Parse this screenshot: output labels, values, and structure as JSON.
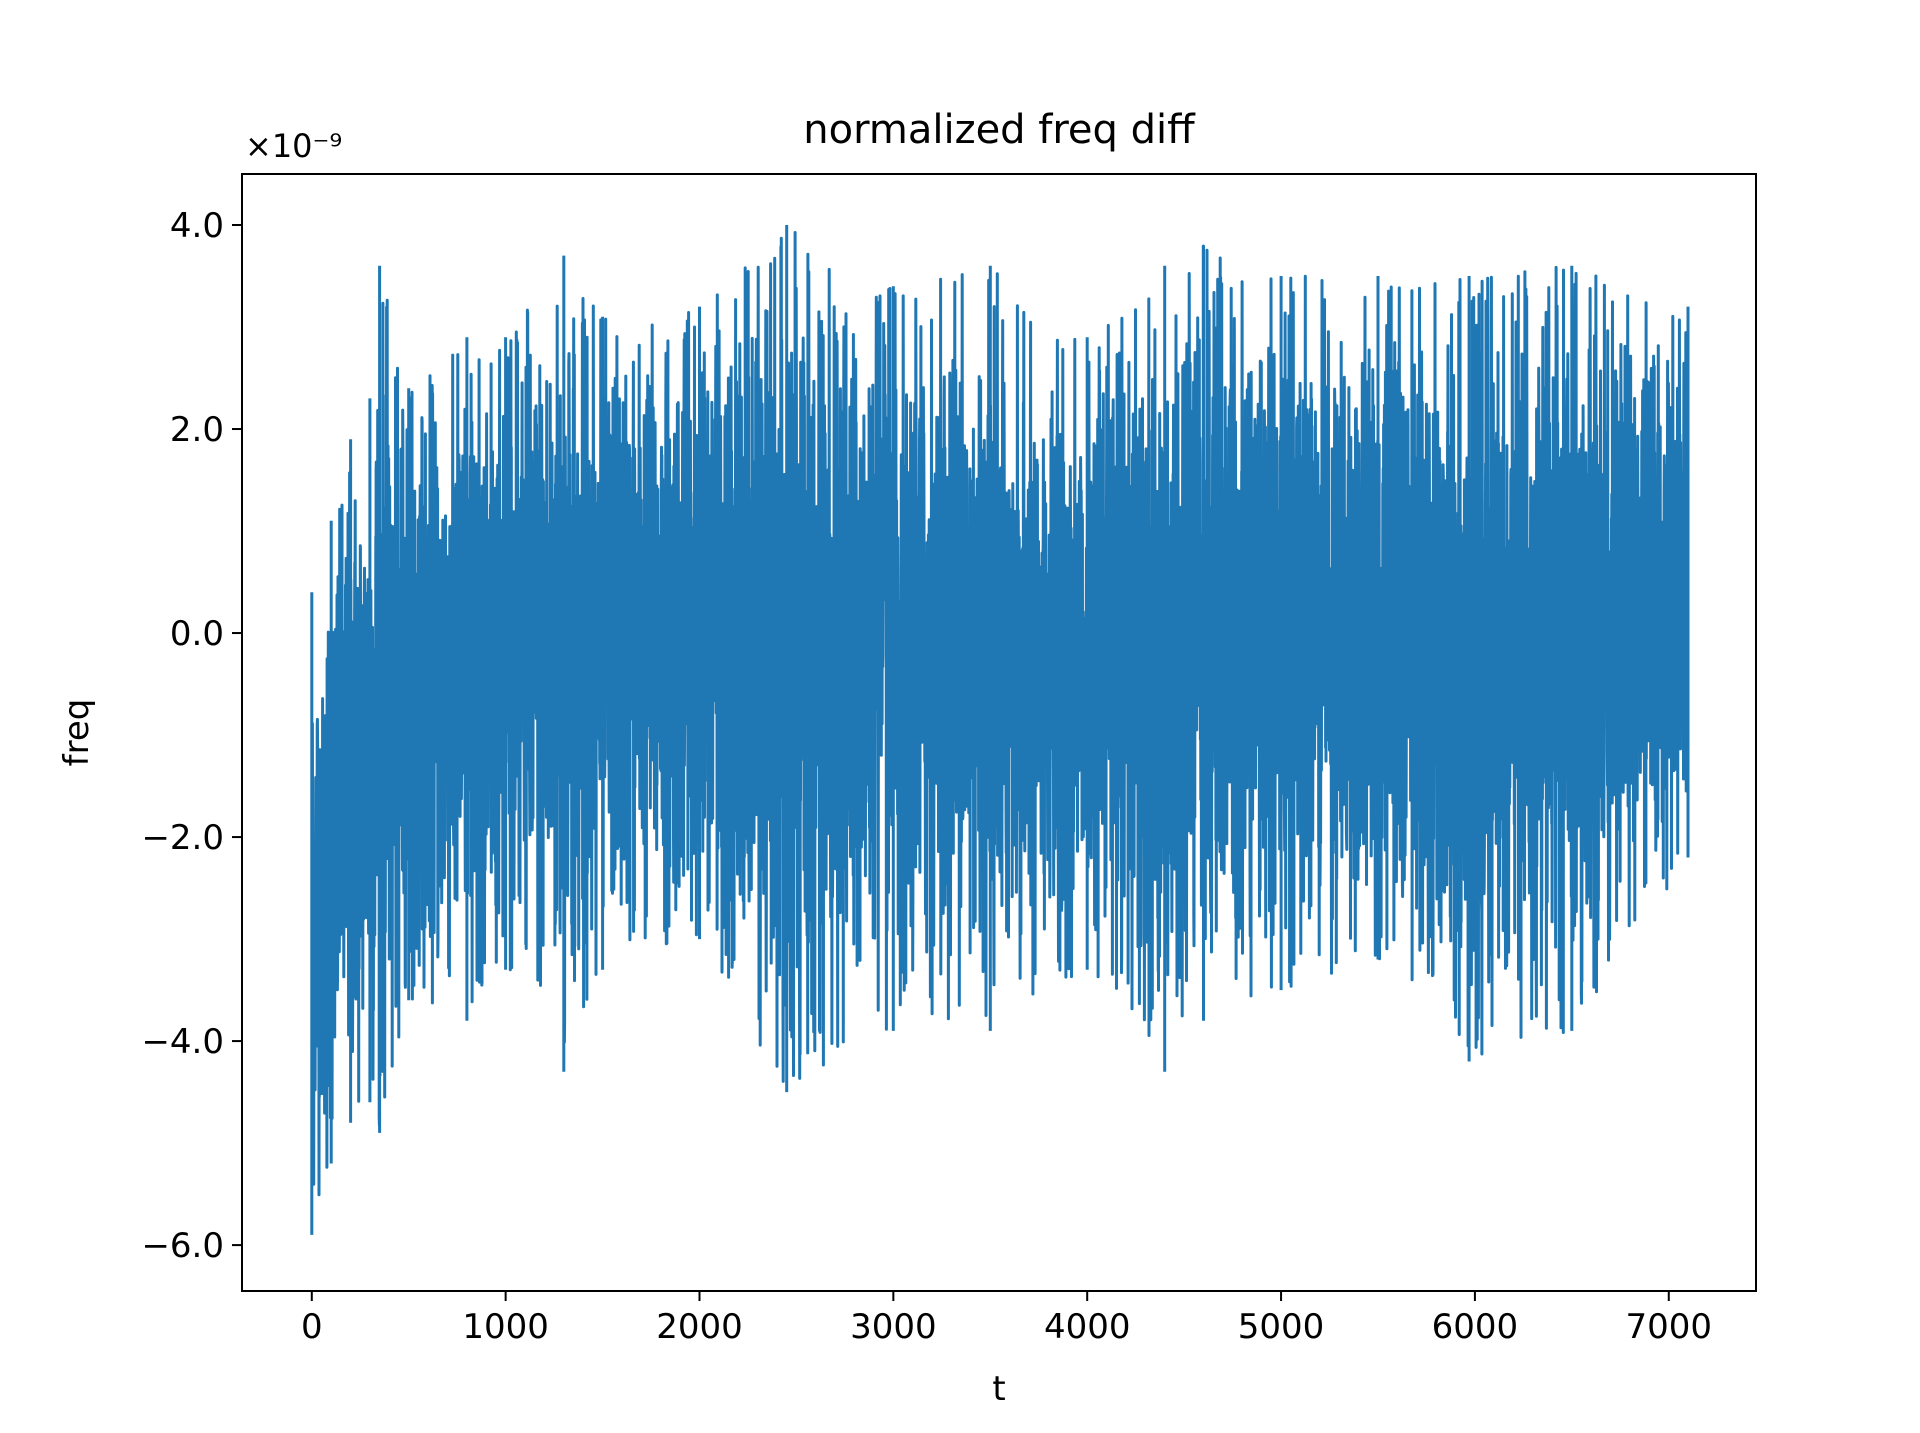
{
  "chart_data": {
    "type": "line",
    "title": "normalized freq diff",
    "xlabel": "t",
    "ylabel": "freq",
    "y_scale_label": "×10⁻⁹",
    "xlim": [
      -360,
      7450
    ],
    "ylim": [
      -6.45,
      4.5
    ],
    "x_ticks": [
      0,
      1000,
      2000,
      3000,
      4000,
      5000,
      6000,
      7000
    ],
    "x_tick_labels": [
      "0",
      "1000",
      "2000",
      "3000",
      "4000",
      "5000",
      "6000",
      "7000"
    ],
    "y_ticks": [
      -6.0,
      -4.0,
      -2.0,
      0.0,
      2.0,
      4.0
    ],
    "y_tick_labels": [
      "−6.0",
      "−4.0",
      "−2.0",
      "0.0",
      "2.0",
      "4.0"
    ],
    "grid": false,
    "line_color": "#1f77b4",
    "series": [
      {
        "n_points": 7100,
        "x_start": 0,
        "x_end": 7099,
        "mean": -0.45,
        "envelope": [
          {
            "x": 0,
            "low": -5.9,
            "high": 0.4
          },
          {
            "x": 100,
            "low": -5.2,
            "high": 1.1
          },
          {
            "x": 200,
            "low": -4.8,
            "high": 1.9
          },
          {
            "x": 300,
            "low": -4.6,
            "high": 2.3
          },
          {
            "x": 350,
            "low": -4.9,
            "high": 3.6
          },
          {
            "x": 500,
            "low": -3.6,
            "high": 2.4
          },
          {
            "x": 800,
            "low": -3.8,
            "high": 2.9
          },
          {
            "x": 1000,
            "low": -3.3,
            "high": 2.9
          },
          {
            "x": 1300,
            "low": -4.3,
            "high": 3.7
          },
          {
            "x": 1500,
            "low": -3.3,
            "high": 3.1
          },
          {
            "x": 2000,
            "low": -3.0,
            "high": 3.2
          },
          {
            "x": 2450,
            "low": -4.5,
            "high": 4.0
          },
          {
            "x": 3000,
            "low": -3.9,
            "high": 3.4
          },
          {
            "x": 3500,
            "low": -3.9,
            "high": 3.6
          },
          {
            "x": 4000,
            "low": -3.3,
            "high": 2.9
          },
          {
            "x": 4400,
            "low": -4.3,
            "high": 3.6
          },
          {
            "x": 4600,
            "low": -3.8,
            "high": 3.8
          },
          {
            "x": 5000,
            "low": -3.5,
            "high": 3.5
          },
          {
            "x": 5500,
            "low": -3.2,
            "high": 3.5
          },
          {
            "x": 5970,
            "low": -4.2,
            "high": 3.5
          },
          {
            "x": 6500,
            "low": -3.9,
            "high": 3.6
          },
          {
            "x": 7099,
            "low": -2.2,
            "high": 3.2
          }
        ]
      }
    ]
  }
}
